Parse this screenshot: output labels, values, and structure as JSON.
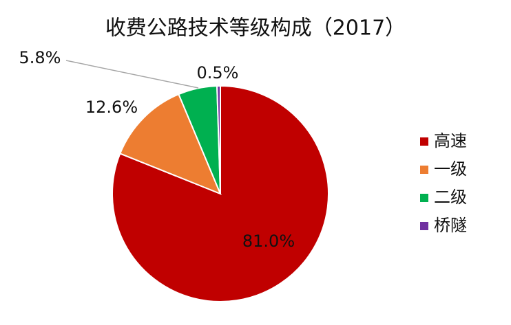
{
  "chart_data": {
    "type": "pie",
    "title": "收费公路技术等级构成（2017）",
    "categories": [
      "高速",
      "一级",
      "二级",
      "桥隧"
    ],
    "values": [
      81.0,
      12.6,
      5.8,
      0.5
    ],
    "value_labels": [
      "81.0%",
      "12.6%",
      "5.8%",
      "0.5%"
    ],
    "colors": [
      "#c00000",
      "#ed7d31",
      "#00b050",
      "#7030a0"
    ],
    "legend": "right"
  }
}
